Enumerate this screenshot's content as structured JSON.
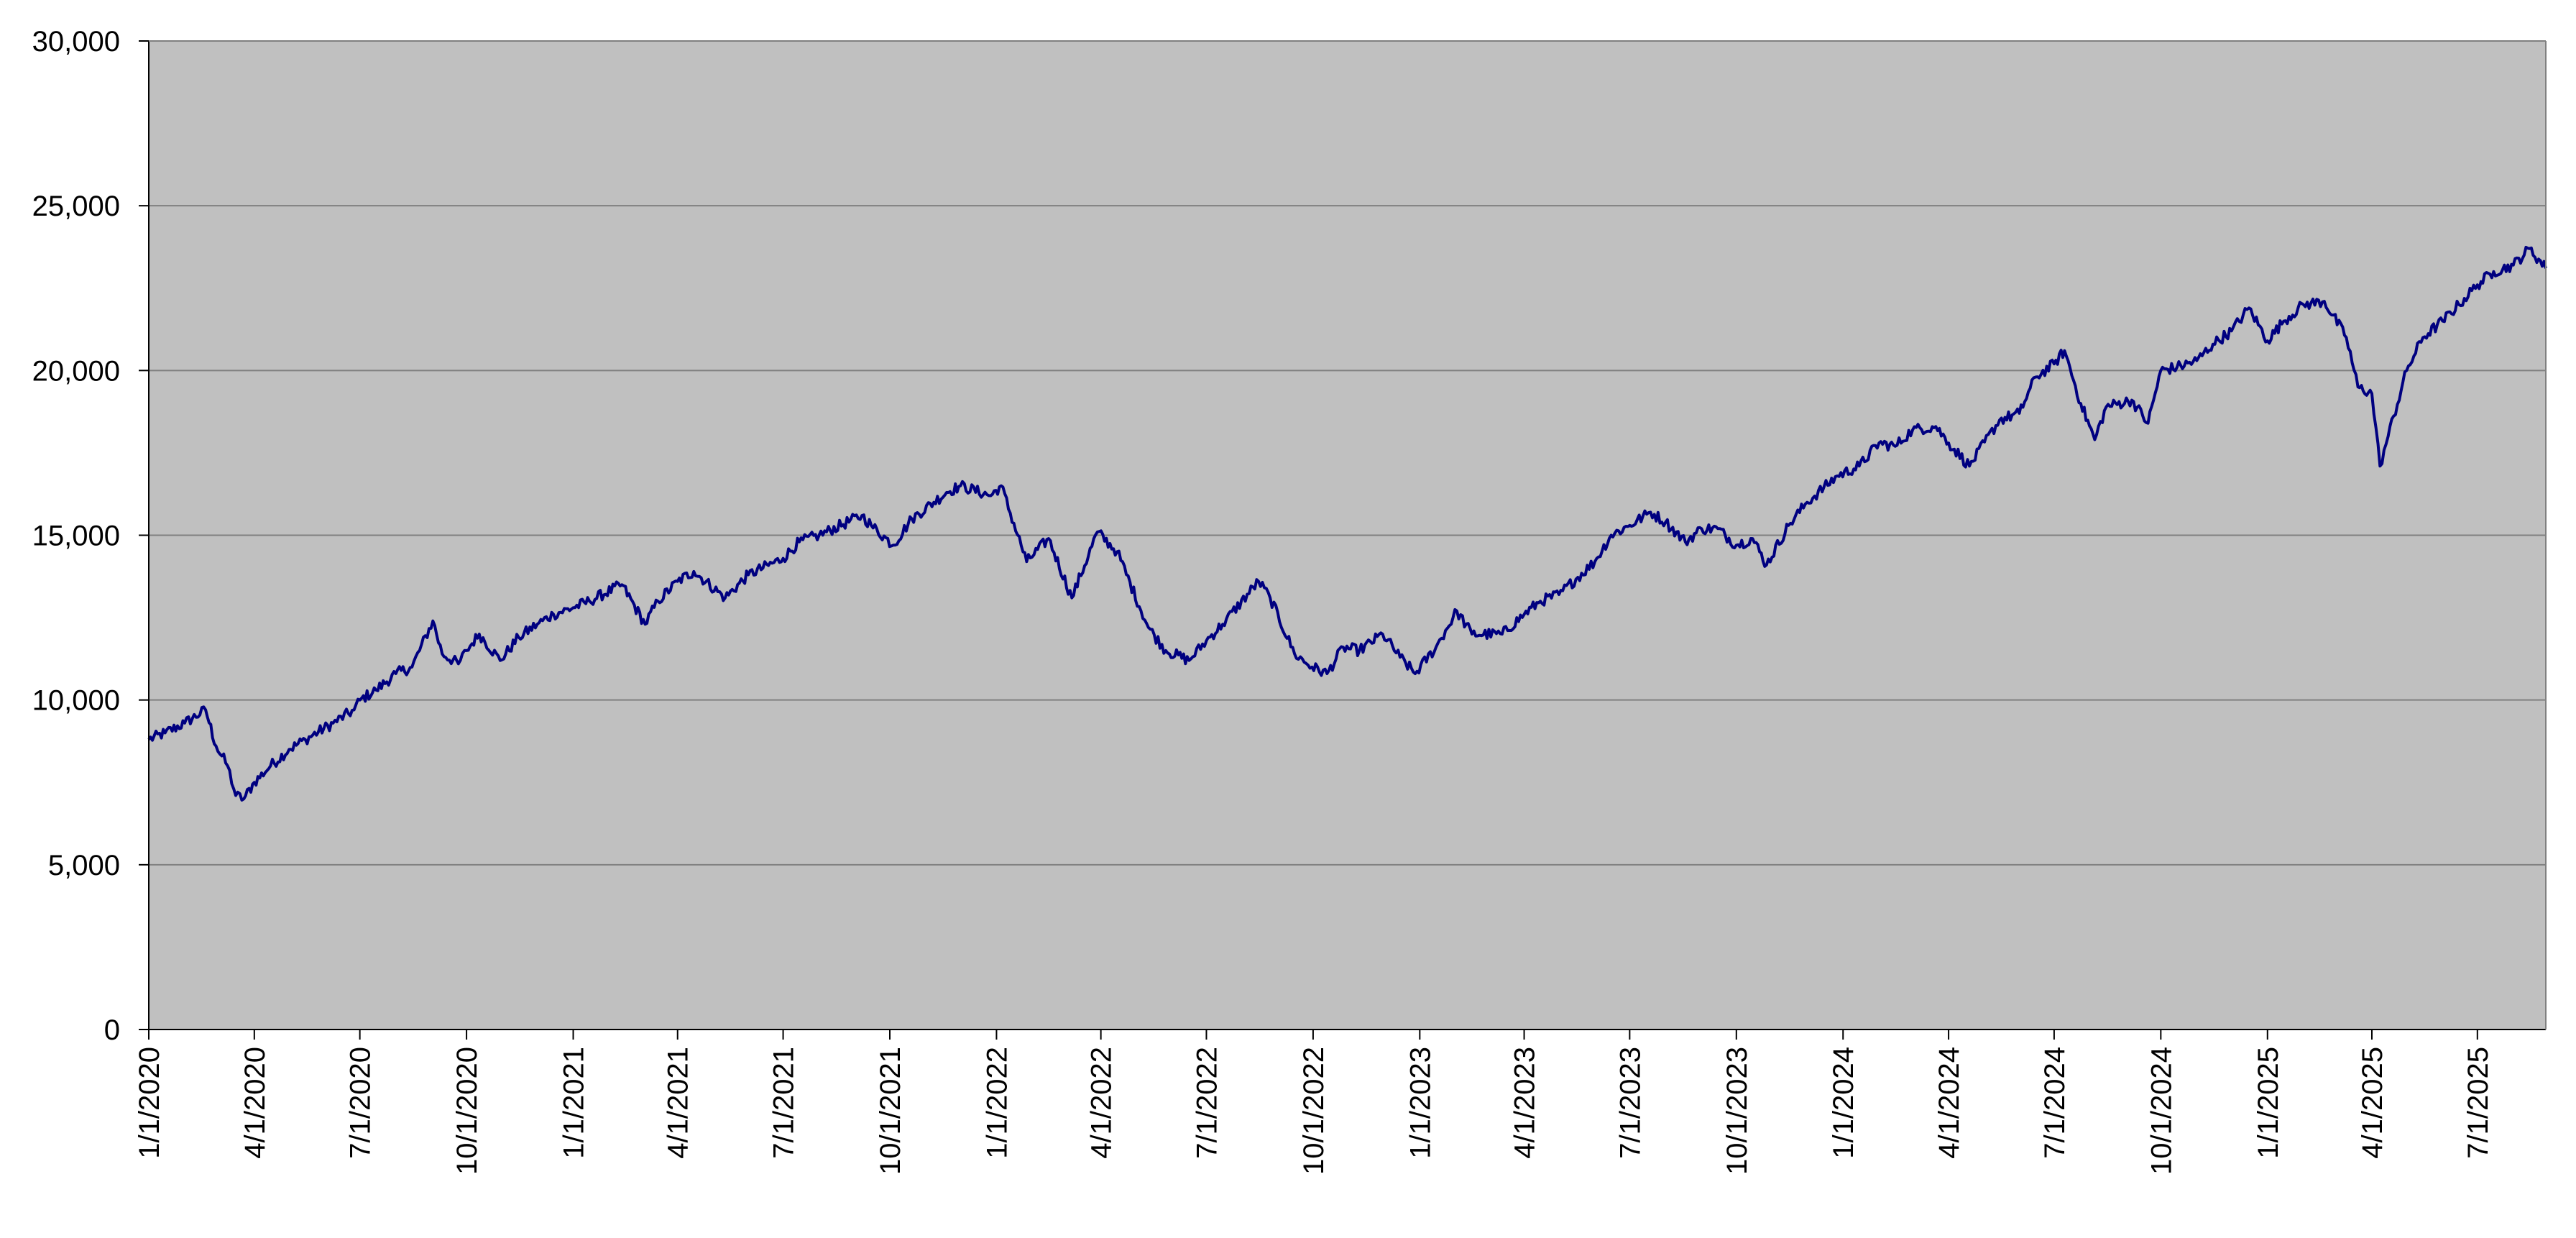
{
  "chart_data": {
    "type": "line",
    "title": "",
    "xlabel": "",
    "ylabel": "",
    "x_range": [
      "1/1/2020",
      "8/29/2025"
    ],
    "ylim": [
      0,
      30000
    ],
    "y_ticks": [
      0,
      5000,
      10000,
      15000,
      20000,
      25000,
      30000
    ],
    "y_tick_labels": [
      "0",
      "5,000",
      "10,000",
      "15,000",
      "20,000",
      "25,000",
      "30,000"
    ],
    "x_ticks": [
      "1/1/2020",
      "4/1/2020",
      "7/1/2020",
      "10/1/2020",
      "1/1/2021",
      "4/1/2021",
      "7/1/2021",
      "10/1/2021",
      "1/1/2022",
      "4/1/2022",
      "7/1/2022",
      "10/1/2022",
      "1/1/2023",
      "4/1/2023",
      "7/1/2023",
      "10/1/2023",
      "1/1/2024",
      "4/1/2024",
      "7/1/2024",
      "10/1/2024",
      "1/1/2025",
      "4/1/2025",
      "7/1/2025"
    ],
    "grid": "horizontal",
    "legend": "none",
    "colors": {
      "plot_background": "#c0c0c0",
      "line": "#000080",
      "grid": "#808080",
      "axis": "#000000"
    },
    "series": [
      {
        "x": [
          "1/1/2020",
          "1/15/2020",
          "2/1/2020",
          "2/19/2020",
          "2/28/2020",
          "3/9/2020",
          "3/16/2020",
          "3/23/2020",
          "4/1/2020",
          "4/15/2020",
          "5/1/2020",
          "5/15/2020",
          "6/8/2020",
          "6/26/2020",
          "7/1/2020",
          "7/15/2020",
          "8/1/2020",
          "8/15/2020",
          "9/2/2020",
          "9/10/2020",
          "9/24/2020",
          "10/1/2020",
          "10/12/2020",
          "10/30/2020",
          "11/15/2020",
          "12/1/2020",
          "12/15/2020",
          "1/1/2021",
          "1/15/2021",
          "2/12/2021",
          "3/4/2021",
          "3/15/2021",
          "4/1/2021",
          "4/15/2021",
          "5/12/2021",
          "6/1/2021",
          "7/1/2021",
          "7/15/2021",
          "8/1/2021",
          "9/7/2021",
          "9/15/2021",
          "10/4/2021",
          "10/20/2021",
          "11/19/2021",
          "12/1/2021",
          "12/27/2021",
          "1/5/2022",
          "1/27/2022",
          "2/15/2022",
          "3/7/2022",
          "3/29/2022",
          "4/15/2022",
          "5/12/2022",
          "5/27/2022",
          "6/16/2022",
          "7/1/2022",
          "7/15/2022",
          "8/15/2022",
          "8/25/2022",
          "9/15/2022",
          "9/30/2022",
          "10/13/2022",
          "10/27/2022",
          "11/10/2022",
          "11/30/2022",
          "12/15/2022",
          "12/28/2022",
          "1/15/2023",
          "2/2/2023",
          "2/15/2023",
          "3/13/2023",
          "4/1/2023",
          "4/15/2023",
          "5/1/2023",
          "6/1/2023",
          "6/15/2023",
          "7/1/2023",
          "7/19/2023",
          "8/1/2023",
          "8/18/2023",
          "9/1/2023",
          "9/15/2023",
          "10/1/2023",
          "10/15/2023",
          "10/27/2023",
          "11/15/2023",
          "12/1/2023",
          "12/27/2023",
          "1/15/2024",
          "2/1/2024",
          "2/15/2024",
          "3/1/2024",
          "3/21/2024",
          "4/1/2024",
          "4/19/2024",
          "5/15/2024",
          "6/1/2024",
          "6/15/2024",
          "7/1/2024",
          "7/10/2024",
          "7/24/2024",
          "8/5/2024",
          "8/15/2024",
          "9/6/2024",
          "9/20/2024",
          "10/1/2024",
          "10/15/2024",
          "11/1/2024",
          "11/15/2024",
          "12/1/2024",
          "12/16/2024",
          "1/1/2025",
          "1/15/2025",
          "2/1/2025",
          "2/19/2025",
          "3/10/2025",
          "3/20/2025",
          "4/1/2025",
          "4/8/2025",
          "4/15/2025",
          "5/1/2025",
          "5/15/2025",
          "6/1/2025",
          "6/15/2025",
          "7/1/2025",
          "7/15/2025",
          "8/1/2025",
          "8/15/2025",
          "8/29/2025"
        ],
        "values": [
          8800,
          9000,
          9300,
          9700,
          8600,
          8000,
          7100,
          7000,
          7500,
          8000,
          8500,
          8800,
          9300,
          9700,
          10000,
          10300,
          10800,
          11000,
          12400,
          11400,
          11100,
          11500,
          12000,
          11200,
          11900,
          12300,
          12600,
          12800,
          13000,
          13500,
          12300,
          13000,
          13600,
          13900,
          13100,
          13800,
          14300,
          14800,
          15000,
          15600,
          15300,
          14700,
          15500,
          16300,
          16500,
          16200,
          16500,
          14200,
          14900,
          13100,
          15100,
          14500,
          12200,
          11500,
          11200,
          11800,
          12300,
          13600,
          13100,
          11400,
          11000,
          10800,
          11600,
          11500,
          12000,
          11300,
          10800,
          11600,
          12700,
          12000,
          12000,
          12600,
          13000,
          13200,
          14200,
          15000,
          15300,
          15700,
          15400,
          14800,
          15200,
          15200,
          14700,
          14900,
          14100,
          15300,
          16000,
          16800,
          17100,
          17800,
          17700,
          18200,
          18300,
          17800,
          17100,
          18500,
          18700,
          19800,
          20200,
          20600,
          19000,
          17900,
          18900,
          19100,
          18400,
          20000,
          20100,
          20300,
          20800,
          21200,
          21900,
          20900,
          21500,
          22000,
          22100,
          21000,
          19500,
          19300,
          17100,
          18000,
          20000,
          21000,
          21500,
          22000,
          22600,
          23000,
          23200,
          23700,
          23100
        ]
      }
    ]
  }
}
